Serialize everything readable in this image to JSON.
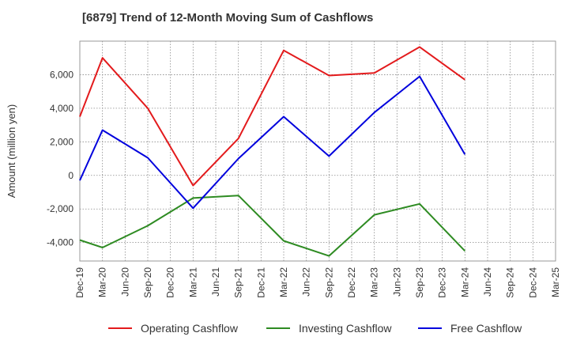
{
  "chart_data": {
    "type": "line",
    "title": "[6879]  Trend of 12-Month Moving Sum of Cashflows",
    "ylabel": "Amount (million yen)",
    "xlabel": "",
    "categories": [
      "Dec-19",
      "Mar-20",
      "Jun-20",
      "Sep-20",
      "Dec-20",
      "Mar-21",
      "Jun-21",
      "Sep-21",
      "Dec-21",
      "Mar-22",
      "Jun-22",
      "Sep-22",
      "Dec-22",
      "Mar-23",
      "Jun-23",
      "Sep-23",
      "Dec-23",
      "Mar-24",
      "Jun-24",
      "Sep-24",
      "Dec-24",
      "Mar-25"
    ],
    "ylim": [
      -5100,
      8000
    ],
    "yticks": [
      -4000,
      -2000,
      0,
      2000,
      4000,
      6000
    ],
    "ytick_labels": [
      "-4,000",
      "-2,000",
      "0",
      "2,000",
      "4,000",
      "6,000"
    ],
    "grid": true,
    "legend_position": "bottom",
    "series": [
      {
        "name": "Operating Cashflow",
        "color": "#e31a1c",
        "x": [
          "Dec-19",
          "Mar-20",
          "Sep-20",
          "Mar-21",
          "Sep-21",
          "Mar-22",
          "Sep-22",
          "Mar-23",
          "Sep-23",
          "Mar-24"
        ],
        "values": [
          3500,
          7000,
          4000,
          -600,
          2200,
          7450,
          5950,
          6100,
          7650,
          5700
        ]
      },
      {
        "name": "Investing Cashflow",
        "color": "#2e8b22",
        "x": [
          "Dec-19",
          "Mar-20",
          "Sep-20",
          "Mar-21",
          "Sep-21",
          "Mar-22",
          "Sep-22",
          "Mar-23",
          "Sep-23",
          "Mar-24"
        ],
        "values": [
          -3850,
          -4300,
          -3000,
          -1350,
          -1200,
          -3900,
          -4800,
          -2350,
          -1700,
          -4500
        ]
      },
      {
        "name": "Free Cashflow",
        "color": "#0000dd",
        "x": [
          "Dec-19",
          "Mar-20",
          "Sep-20",
          "Mar-21",
          "Sep-21",
          "Mar-22",
          "Sep-22",
          "Mar-23",
          "Sep-23",
          "Mar-24"
        ],
        "values": [
          -300,
          2700,
          1050,
          -1950,
          1000,
          3500,
          1150,
          3750,
          5900,
          1250
        ]
      }
    ]
  }
}
